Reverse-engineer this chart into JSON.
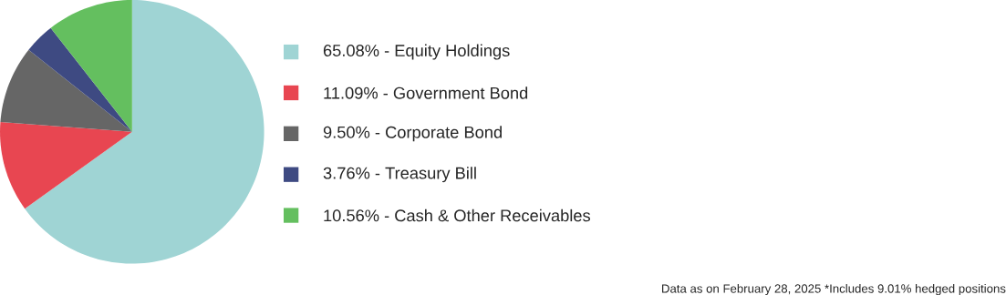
{
  "chart_data": {
    "type": "pie",
    "categories": [
      "65.08% - Equity Holdings",
      "11.09% - Government Bond",
      "9.50% - Corporate Bond",
      "3.76% - Treasury Bill",
      "10.56% - Cash & Other Receivables"
    ],
    "values": [
      65.08,
      11.09,
      9.5,
      3.76,
      10.56
    ],
    "colors": [
      "#9fd4d4",
      "#e84651",
      "#666666",
      "#3e4a82",
      "#64bf5f"
    ],
    "legend": "right",
    "annotations": [
      "Data as on February 28, 2025 *Includes 9.01% hedged positions"
    ]
  }
}
